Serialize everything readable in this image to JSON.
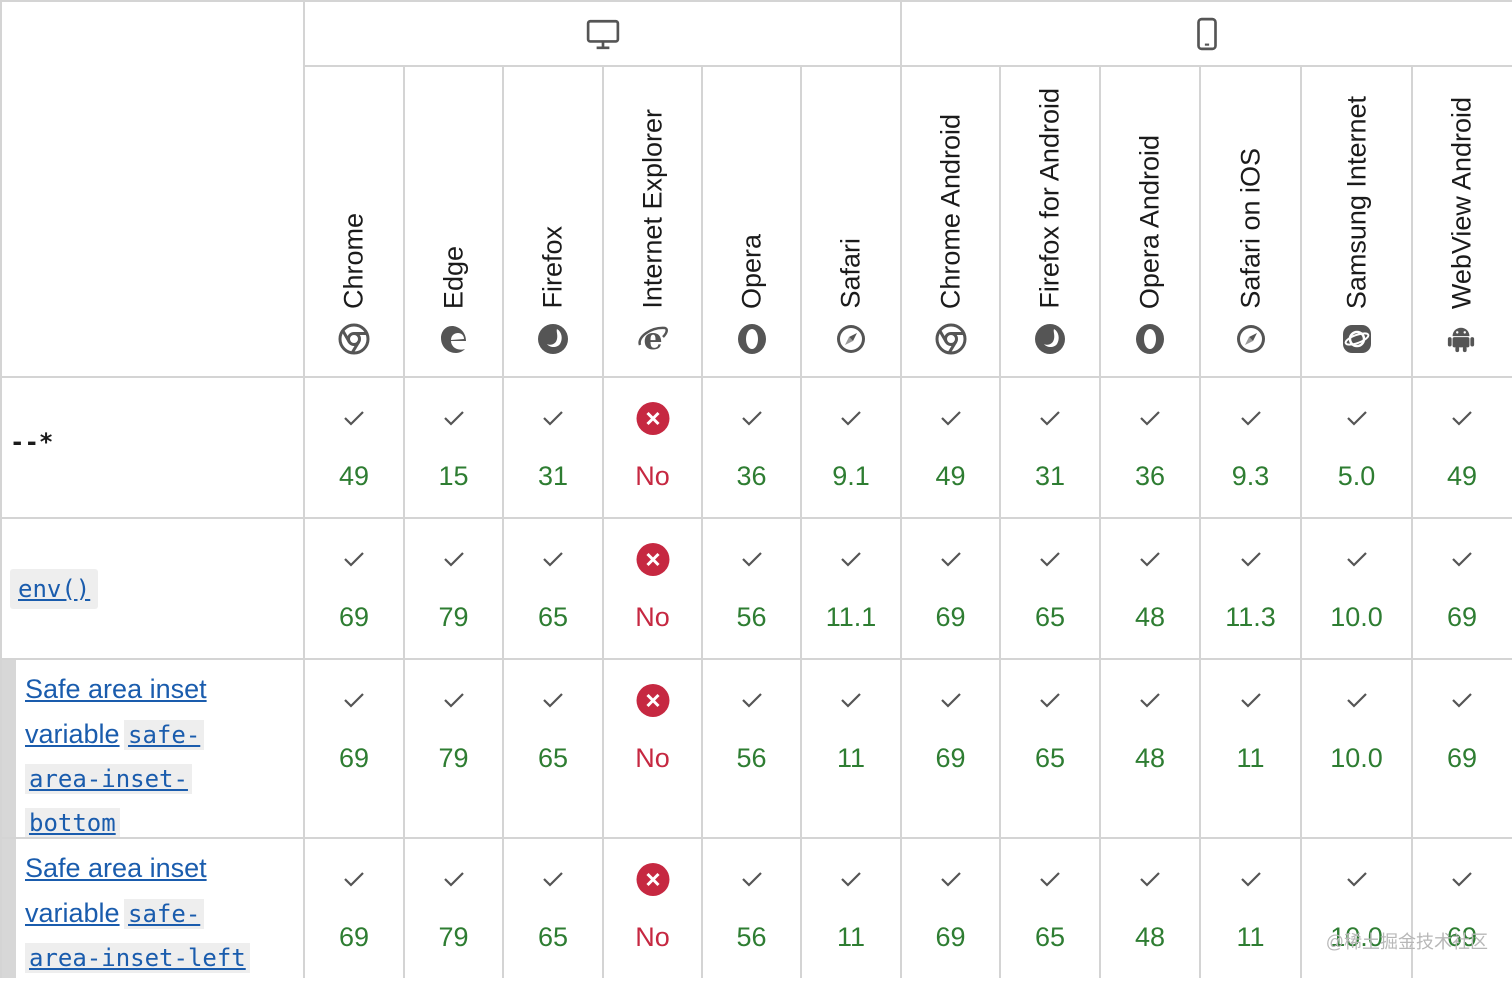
{
  "browsers": [
    {
      "name": "Chrome",
      "icon": "chrome-icon"
    },
    {
      "name": "Edge",
      "icon": "edge-icon"
    },
    {
      "name": "Firefox",
      "icon": "firefox-icon"
    },
    {
      "name": "Internet Explorer",
      "icon": "ie-icon"
    },
    {
      "name": "Opera",
      "icon": "opera-icon"
    },
    {
      "name": "Safari",
      "icon": "safari-icon"
    },
    {
      "name": "Chrome Android",
      "icon": "chrome-icon"
    },
    {
      "name": "Firefox for Android",
      "icon": "firefox-icon"
    },
    {
      "name": "Opera Android",
      "icon": "opera-icon"
    },
    {
      "name": "Safari on iOS",
      "icon": "safari-icon"
    },
    {
      "name": "Samsung Internet",
      "icon": "samsung-internet-icon"
    },
    {
      "name": "WebView Android",
      "icon": "android-icon"
    }
  ],
  "groups": [
    {
      "icon": "desktop-icon"
    },
    {
      "icon": "mobile-icon"
    }
  ],
  "rows": [
    {
      "feature": {
        "plain_code": "--*"
      },
      "support": [
        "49",
        "15",
        "31",
        "No",
        "36",
        "9.1",
        "49",
        "31",
        "36",
        "9.3",
        "5.0",
        "49"
      ]
    },
    {
      "feature": {
        "code": "env()"
      },
      "support": [
        "69",
        "79",
        "65",
        "No",
        "56",
        "11.1",
        "69",
        "65",
        "48",
        "11.3",
        "10.0",
        "69"
      ]
    },
    {
      "feature": {
        "text": "Safe area inset variable",
        "code_lines": [
          "safe-",
          "area-inset-",
          "bottom"
        ]
      },
      "support": [
        "69",
        "79",
        "65",
        "No",
        "56",
        "11",
        "69",
        "65",
        "48",
        "11",
        "10.0",
        "69"
      ]
    },
    {
      "feature": {
        "text": "Safe area inset variable",
        "code_lines": [
          "safe-",
          "area-inset-left"
        ]
      },
      "support": [
        "69",
        "79",
        "65",
        "No",
        "56",
        "11",
        "69",
        "65",
        "48",
        "11",
        "10.0",
        "69"
      ]
    }
  ],
  "watermark": "@稀土掘金技术社区",
  "colors": {
    "supported": "#2e7d32",
    "unsupported": "#c62841",
    "link": "#1a5cad",
    "border": "#d4d4d4"
  }
}
